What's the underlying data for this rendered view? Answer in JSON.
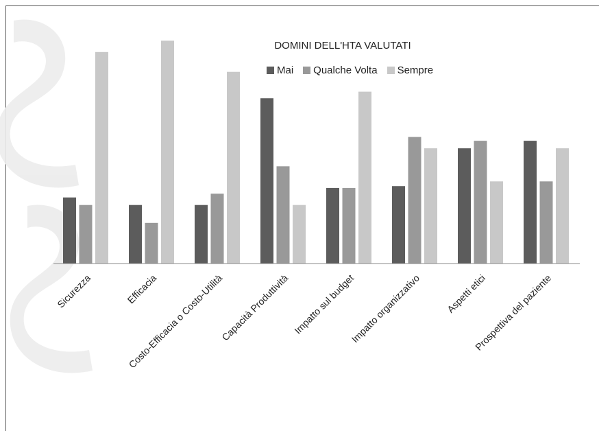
{
  "chart_data": {
    "type": "bar",
    "title": "DOMINI DELL'HTA VALUTATI",
    "categories": [
      "Sicurezza",
      "Efficacia",
      "Costo-Efficacia o Costo-Utilità",
      "Capacità Produttività",
      "Impatto sul budget",
      "Impatto organizzativo",
      "Aspetti etici",
      "Prospettiva del paziente"
    ],
    "series": [
      {
        "name": "Mai",
        "color": "#5c5c5c",
        "values": [
          7,
          6.2,
          6.2,
          17.5,
          8,
          8.2,
          12.2,
          13
        ]
      },
      {
        "name": "Qualche Volta",
        "color": "#999999",
        "values": [
          6.2,
          4.3,
          7.4,
          10.3,
          8,
          13.4,
          13,
          8.7
        ]
      },
      {
        "name": "Sempre",
        "color": "#c8c8c8",
        "values": [
          22.4,
          23.6,
          20.3,
          6.2,
          18.2,
          12.2,
          8.7,
          12.2
        ]
      }
    ],
    "xlabel": "",
    "ylabel": "",
    "ylim": [
      0,
      25
    ],
    "grid": false,
    "legend_position": "top"
  }
}
